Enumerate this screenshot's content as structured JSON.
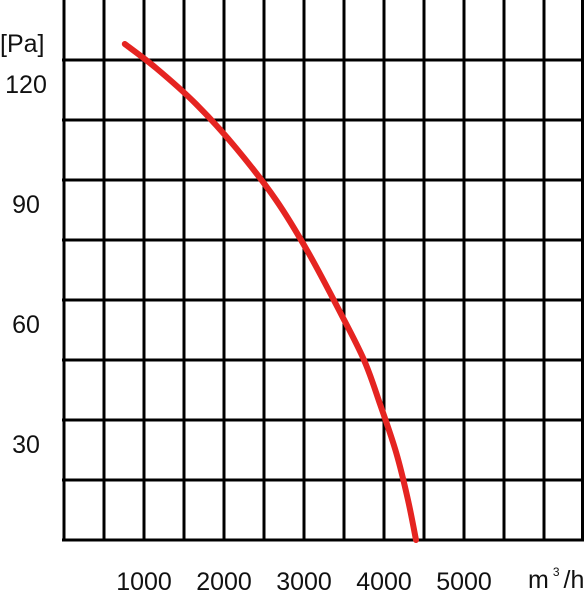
{
  "chart_data": {
    "type": "line",
    "title": "",
    "xlabel": "",
    "ylabel": "",
    "y_unit_label": "[Pa]",
    "x_unit_label": {
      "base": "m",
      "superscript": "3",
      "suffix": "/h"
    },
    "x_ticks": [
      1000,
      2000,
      3000,
      4000,
      5000
    ],
    "x_tick_labels": [
      "1000",
      "2000",
      "3000",
      "4000",
      "5000"
    ],
    "y_ticks": [
      30,
      60,
      90,
      120
    ],
    "y_tick_labels": [
      "30",
      "60",
      "90",
      "120"
    ],
    "xlim": [
      0,
      5200
    ],
    "ylim": [
      0,
      120
    ],
    "grid": true,
    "series_color": "#e52421",
    "grid_color": "#000000",
    "series": [
      {
        "x": [
          810,
          1200,
          1700,
          2200,
          2700,
          3100,
          3500,
          3800,
          4000,
          4200,
          4350,
          4450
        ],
        "y": [
          124,
          118,
          109,
          98,
          85,
          72,
          57,
          45,
          34,
          22,
          10,
          0
        ]
      }
    ]
  }
}
